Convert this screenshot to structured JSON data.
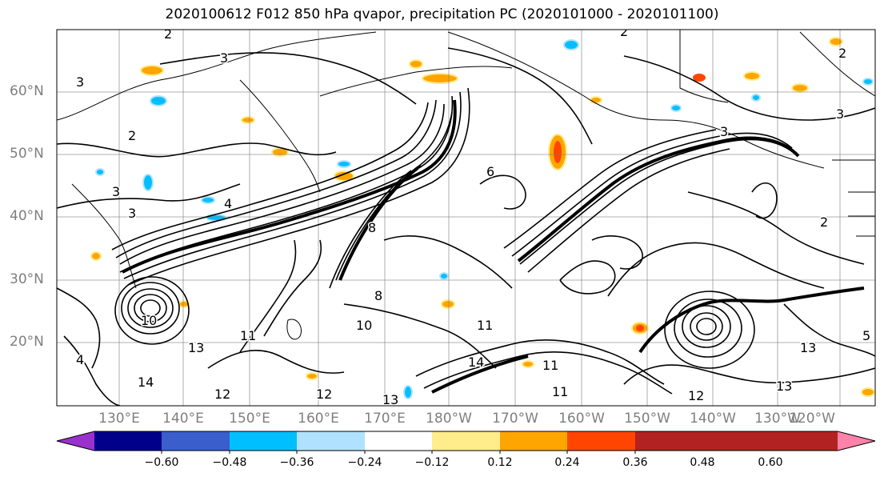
{
  "title": "2020100612 F012 850 hPa qvapor, precipitation PC (2020101000 - 2020101100)",
  "latitude_labels": [
    "60°N",
    "50°N",
    "40°N",
    "30°N",
    "20°N"
  ],
  "longitude_labels": [
    "130°E",
    "140°E",
    "150°E",
    "160°E",
    "170°E",
    "180°W",
    "170°W",
    "160°W",
    "150°W",
    "140°W",
    "130°W",
    "120°W"
  ],
  "colorbar": {
    "tick_labels": [
      "−0.60",
      "−0.48",
      "−0.36",
      "−0.24",
      "−0.12",
      "0.12",
      "0.24",
      "0.36",
      "0.48",
      "0.60"
    ],
    "colors": [
      "#9932cc",
      "#00008b",
      "#3a5fcd",
      "#00bfff",
      "#b0e2ff",
      "#ffffff",
      "#ffec8b",
      "#ffa500",
      "#ff4500",
      "#b22222",
      "#ff82ab"
    ],
    "extend": "both"
  },
  "contour_labels": [
    "2",
    "3",
    "2",
    "2",
    "3",
    "2",
    "3",
    "4",
    "3",
    "3",
    "6",
    "8",
    "10",
    "11",
    "11",
    "13",
    "14",
    "12",
    "12",
    "13",
    "14",
    "11",
    "11",
    "12",
    "13",
    "13",
    "10",
    "8",
    "4",
    "5",
    "2",
    "3"
  ],
  "styles": {
    "frame": "#000000",
    "gridlines": "#808080",
    "coastline": "#000000",
    "contour": "#000000",
    "axis_label_color": "#7f7f7f"
  }
}
